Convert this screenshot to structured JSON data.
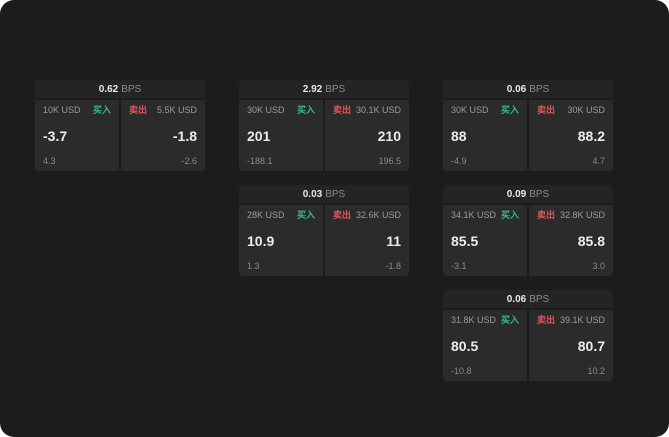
{
  "page": {
    "background": "#1c1c1c"
  },
  "colors": {
    "buy_accent": "#35bd82",
    "sell_accent": "#e4555a",
    "panel_bg": "#2b2b2b",
    "header_bg": "#242424"
  },
  "cards": [
    {
      "bps": "0.62",
      "bps_unit": "BPS",
      "buy": {
        "amount": "10K USD",
        "label": "买入",
        "price": "-3.7",
        "delta": "4.3"
      },
      "sell": {
        "label": "卖出",
        "amount": "5.5K USD",
        "price": "-1.8",
        "delta": "-2.6"
      }
    },
    {
      "bps": "2.92",
      "bps_unit": "BPS",
      "buy": {
        "amount": "30K USD",
        "label": "买入",
        "price": "201",
        "delta": "-188.1"
      },
      "sell": {
        "label": "卖出",
        "amount": "30.1K USD",
        "price": "210",
        "delta": "196.5"
      }
    },
    {
      "bps": "0.06",
      "bps_unit": "BPS",
      "buy": {
        "amount": "30K USD",
        "label": "买入",
        "price": "88",
        "delta": "-4.9"
      },
      "sell": {
        "label": "卖出",
        "amount": "30K USD",
        "price": "88.2",
        "delta": "4.7"
      }
    },
    {
      "bps": "0.03",
      "bps_unit": "BPS",
      "buy": {
        "amount": "28K USD",
        "label": "买入",
        "price": "10.9",
        "delta": "1.3"
      },
      "sell": {
        "label": "卖出",
        "amount": "32.6K USD",
        "price": "11",
        "delta": "-1.8"
      }
    },
    {
      "bps": "0.09",
      "bps_unit": "BPS",
      "buy": {
        "amount": "34.1K USD",
        "label": "买入",
        "price": "85.5",
        "delta": "-3.1"
      },
      "sell": {
        "label": "卖出",
        "amount": "32.8K USD",
        "price": "85.8",
        "delta": "3.0"
      }
    },
    {
      "bps": "0.06",
      "bps_unit": "BPS",
      "buy": {
        "amount": "31.8K USD",
        "label": "买入",
        "price": "80.5",
        "delta": "-10.8"
      },
      "sell": {
        "label": "卖出",
        "amount": "39.1K USD",
        "price": "80.7",
        "delta": "10.2"
      }
    }
  ]
}
